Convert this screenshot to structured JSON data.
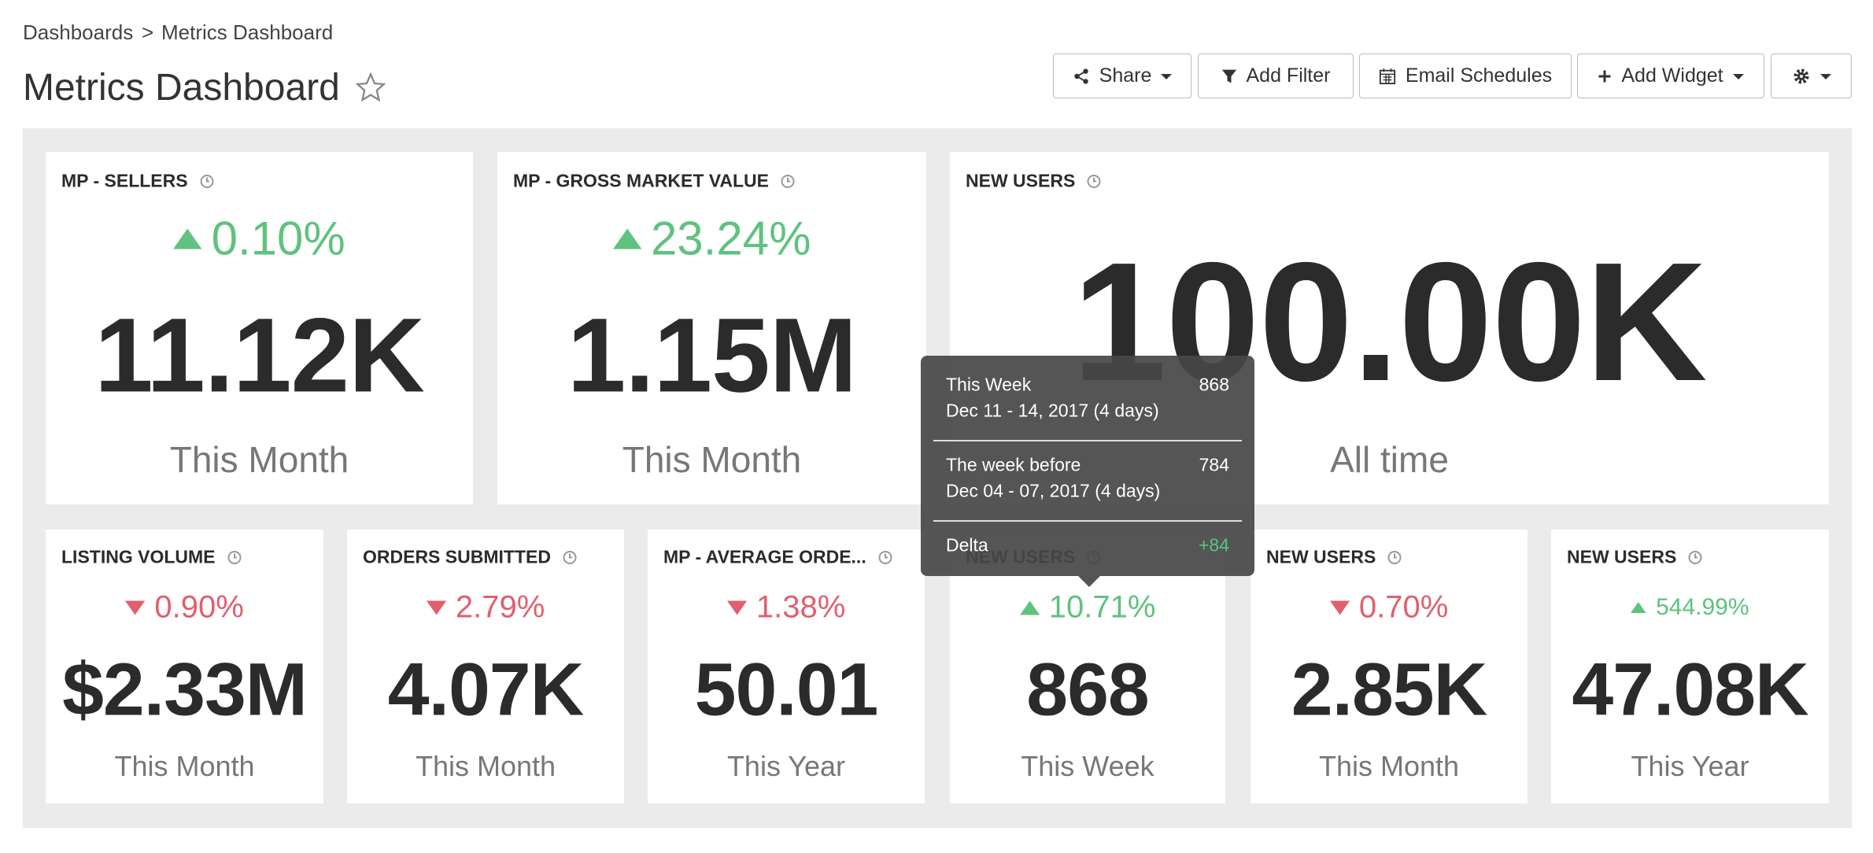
{
  "breadcrumb": {
    "items": [
      "Dashboards",
      "Metrics Dashboard"
    ],
    "separator": ">"
  },
  "header": {
    "title": "Metrics Dashboard"
  },
  "toolbar": {
    "buttons": [
      "Share",
      "Add Filter",
      "Email Schedules",
      "Add Widget"
    ]
  },
  "widgets": [
    {
      "title": "MP - SELLERS",
      "change": "0.10%",
      "trend": "up",
      "value": "11.12K",
      "period": "This Month"
    },
    {
      "title": "MP - GROSS MARKET VALUE",
      "change": "23.24%",
      "trend": "up",
      "value": "1.15M",
      "period": "This Month"
    },
    {
      "title": "NEW USERS",
      "value": "100.00K",
      "period": "All time"
    },
    {
      "title": "LISTING VOLUME",
      "change": "0.90%",
      "trend": "down",
      "value": "$2.33M",
      "period": "This Month"
    },
    {
      "title": "ORDERS SUBMITTED",
      "change": "2.79%",
      "trend": "down",
      "value": "4.07K",
      "period": "This Month"
    },
    {
      "title": "MP - AVERAGE ORDE...",
      "change": "1.38%",
      "trend": "down",
      "value": "50.01",
      "period": "This Year"
    },
    {
      "title": "NEW USERS",
      "change": "10.71%",
      "trend": "up",
      "value": "868",
      "period": "This Week"
    },
    {
      "title": "NEW USERS",
      "change": "0.70%",
      "trend": "down",
      "value": "2.85K",
      "period": "This Month"
    },
    {
      "title": "NEW USERS",
      "change": "544.99%",
      "trend": "up",
      "value": "47.08K",
      "period": "This Year"
    }
  ],
  "tooltip": {
    "rows": [
      {
        "label": "This Week",
        "value": "868",
        "dates": "Dec 11 - 14, 2017 (4 days)"
      },
      {
        "label": "The week before",
        "value": "784",
        "dates": "Dec 04 - 07, 2017 (4 days)"
      }
    ],
    "delta": {
      "label": "Delta",
      "value": "+84"
    }
  }
}
